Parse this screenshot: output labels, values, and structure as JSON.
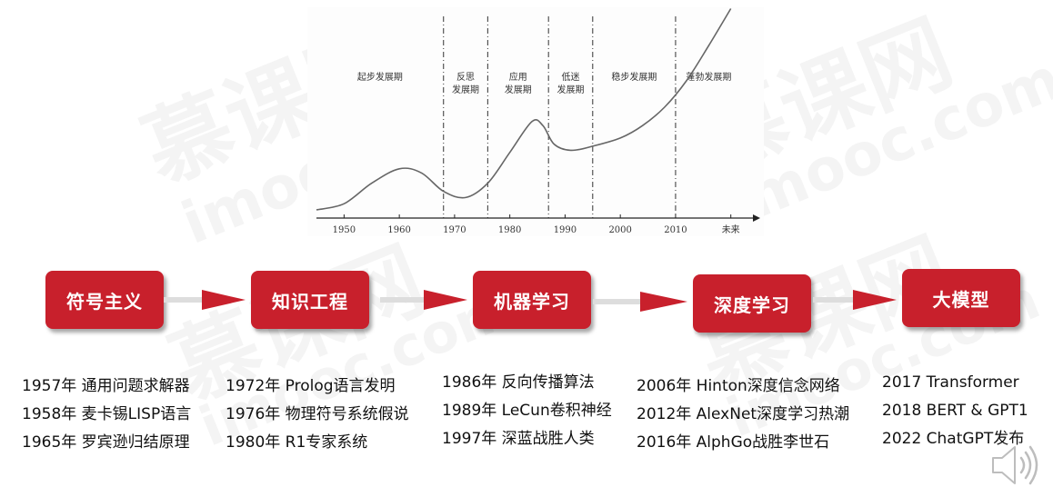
{
  "chart_data": {
    "type": "line",
    "x_ticks": [
      "1950",
      "1960",
      "1970",
      "1980",
      "1990",
      "2000",
      "2010",
      "未来"
    ],
    "periods": [
      {
        "label_lines": [
          "起步发展期"
        ],
        "start": 1945,
        "end": 1968
      },
      {
        "label_lines": [
          "反思",
          "发展期"
        ],
        "start": 1968,
        "end": 1976
      },
      {
        "label_lines": [
          "应用",
          "发展期"
        ],
        "start": 1976,
        "end": 1987
      },
      {
        "label_lines": [
          "低迷",
          "发展期"
        ],
        "start": 1987,
        "end": 1995
      },
      {
        "label_lines": [
          "稳步发展期"
        ],
        "start": 1995,
        "end": 2010
      },
      {
        "label_lines": [
          "蓬勃发展期"
        ],
        "start": 2010,
        "end": 2022
      }
    ],
    "curve": [
      {
        "x": 1945,
        "y": 0.04
      },
      {
        "x": 1950,
        "y": 0.07
      },
      {
        "x": 1955,
        "y": 0.17
      },
      {
        "x": 1960,
        "y": 0.24
      },
      {
        "x": 1964,
        "y": 0.22
      },
      {
        "x": 1968,
        "y": 0.13
      },
      {
        "x": 1972,
        "y": 0.1
      },
      {
        "x": 1976,
        "y": 0.17
      },
      {
        "x": 1980,
        "y": 0.32
      },
      {
        "x": 1984,
        "y": 0.47
      },
      {
        "x": 1986,
        "y": 0.45
      },
      {
        "x": 1988,
        "y": 0.36
      },
      {
        "x": 1991,
        "y": 0.33
      },
      {
        "x": 1995,
        "y": 0.35
      },
      {
        "x": 2000,
        "y": 0.39
      },
      {
        "x": 2004,
        "y": 0.45
      },
      {
        "x": 2008,
        "y": 0.54
      },
      {
        "x": 2012,
        "y": 0.67
      },
      {
        "x": 2016,
        "y": 0.84
      },
      {
        "x": 2020,
        "y": 1.02
      }
    ]
  },
  "stages": [
    {
      "label": "符号主义",
      "events": [
        "1957年 通用问题求解器",
        "1958年 麦卡锡LISP语言",
        "1965年 罗宾逊归结原理"
      ]
    },
    {
      "label": "知识工程",
      "events": [
        "1972年 Prolog语言发明",
        "1976年 物理符号系统假说",
        "1980年 R1专家系统"
      ]
    },
    {
      "label": "机器学习",
      "events": [
        "1986年 反向传播算法",
        "1989年 LeCun卷积神经",
        "1997年 深蓝战胜人类"
      ]
    },
    {
      "label": "深度学习",
      "events": [
        "2006年 Hinton深度信念网络",
        "2012年 AlexNet深度学习热潮",
        "2016年 AlphGo战胜李世石"
      ]
    },
    {
      "label": "大模型",
      "events": [
        "2017 Transformer",
        "2018 BERT & GPT1",
        "2022 ChatGPT发布"
      ]
    }
  ],
  "watermark": {
    "brand_cn": "慕课网",
    "brand_en": "imooc.com"
  },
  "colors": {
    "stage_fill": "#c8202c",
    "arrow_fill": "#c8202c",
    "connector": "#dddddd",
    "curve": "#666666"
  },
  "icons": {
    "speaker": "speaker-icon"
  }
}
